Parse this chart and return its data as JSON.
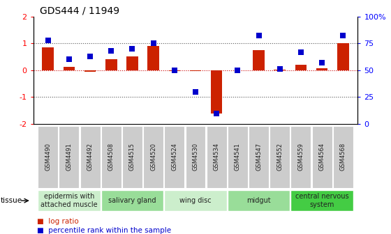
{
  "title": "GDS444 / 11949",
  "samples": [
    "GSM4490",
    "GSM4491",
    "GSM4492",
    "GSM4508",
    "GSM4515",
    "GSM4520",
    "GSM4524",
    "GSM4530",
    "GSM4534",
    "GSM4541",
    "GSM4547",
    "GSM4552",
    "GSM4559",
    "GSM4564",
    "GSM4568"
  ],
  "log_ratio": [
    0.85,
    0.12,
    -0.05,
    0.4,
    0.5,
    0.9,
    -0.02,
    -0.02,
    -1.62,
    0.0,
    0.75,
    0.01,
    0.2,
    0.07,
    1.0
  ],
  "percentile": [
    78,
    60,
    63,
    68,
    70,
    75,
    50,
    30,
    10,
    50,
    82,
    51,
    67,
    57,
    82
  ],
  "ylim": [
    -2,
    2
  ],
  "yticks": [
    -2,
    -1,
    0,
    1,
    2
  ],
  "y2ticks": [
    0,
    25,
    50,
    75,
    100
  ],
  "y2ticklabels": [
    "0",
    "25",
    "50",
    "75",
    "100%"
  ],
  "tissue_groups": [
    {
      "label": "epidermis with\nattached muscle",
      "start": 0,
      "end": 2,
      "color": "#cceecc"
    },
    {
      "label": "salivary gland",
      "start": 3,
      "end": 5,
      "color": "#99dd99"
    },
    {
      "label": "wing disc",
      "start": 6,
      "end": 8,
      "color": "#cceecc"
    },
    {
      "label": "midgut",
      "start": 9,
      "end": 11,
      "color": "#99dd99"
    },
    {
      "label": "central nervous\nsystem",
      "start": 12,
      "end": 14,
      "color": "#44cc44"
    }
  ],
  "bar_color": "#cc2200",
  "dot_color": "#0000cc",
  "bar_width": 0.55,
  "dot_size": 40,
  "title_fontsize": 10,
  "tick_fontsize": 8,
  "sample_fontsize": 6,
  "tissue_fontsize": 7
}
